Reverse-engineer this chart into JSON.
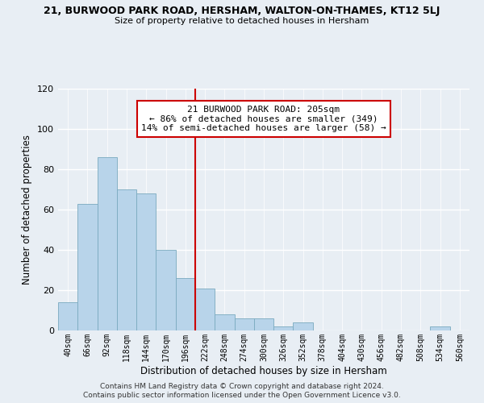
{
  "title_main": "21, BURWOOD PARK ROAD, HERSHAM, WALTON-ON-THAMES, KT12 5LJ",
  "title_sub": "Size of property relative to detached houses in Hersham",
  "xlabel": "Distribution of detached houses by size in Hersham",
  "ylabel": "Number of detached properties",
  "bar_labels": [
    "40sqm",
    "66sqm",
    "92sqm",
    "118sqm",
    "144sqm",
    "170sqm",
    "196sqm",
    "222sqm",
    "248sqm",
    "274sqm",
    "300sqm",
    "326sqm",
    "352sqm",
    "378sqm",
    "404sqm",
    "430sqm",
    "456sqm",
    "482sqm",
    "508sqm",
    "534sqm",
    "560sqm"
  ],
  "bar_heights": [
    14,
    63,
    86,
    70,
    68,
    40,
    26,
    21,
    8,
    6,
    6,
    2,
    4,
    0,
    0,
    0,
    0,
    0,
    0,
    2,
    0
  ],
  "bar_color": "#b8d4ea",
  "bar_edge_color": "#7aaabf",
  "vline_x": 6.5,
  "vline_color": "#cc0000",
  "annotation_line1": "21 BURWOOD PARK ROAD: 205sqm",
  "annotation_line2": "← 86% of detached houses are smaller (349)",
  "annotation_line3": "14% of semi-detached houses are larger (58) →",
  "annotation_box_color": "white",
  "annotation_box_edge": "#cc0000",
  "ylim": [
    0,
    120
  ],
  "yticks": [
    0,
    20,
    40,
    60,
    80,
    100,
    120
  ],
  "footer_line1": "Contains HM Land Registry data © Crown copyright and database right 2024.",
  "footer_line2": "Contains public sector information licensed under the Open Government Licence v3.0.",
  "bg_color": "#e8eef4"
}
